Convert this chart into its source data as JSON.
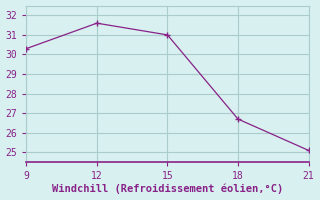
{
  "x": [
    9,
    12,
    15,
    18,
    21
  ],
  "line1_y": [
    30.3,
    31.6,
    31.0,
    26.7,
    25.1
  ],
  "line_color": "#882288",
  "bg_color": "#d8f0ef",
  "grid_color": "#aacccc",
  "xlabel": "Windchill (Refroidissement éolien,°C)",
  "xlim": [
    9,
    21
  ],
  "ylim": [
    24.5,
    32.5
  ],
  "xticks": [
    9,
    12,
    15,
    18,
    21
  ],
  "yticks": [
    25,
    26,
    27,
    28,
    29,
    30,
    31,
    32
  ],
  "xlabel_color": "#882288",
  "tick_color": "#882288",
  "xlabel_fontsize": 7.5,
  "tick_fontsize": 7
}
